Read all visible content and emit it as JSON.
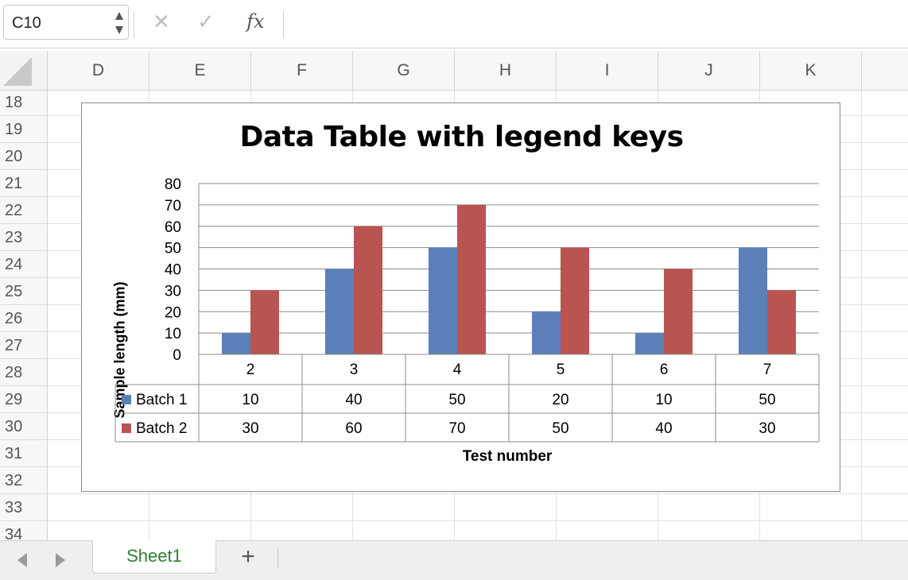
{
  "formula_bar": {
    "name_box": "C10",
    "cancel_icon": "✕",
    "enter_icon": "✓",
    "fx_label": "fx",
    "formula": ""
  },
  "columns": [
    "D",
    "E",
    "F",
    "G",
    "H",
    "I",
    "J",
    "K"
  ],
  "rows": [
    "18",
    "19",
    "20",
    "21",
    "22",
    "23",
    "24",
    "25",
    "26",
    "27",
    "28",
    "29",
    "30",
    "31",
    "32",
    "33",
    "34"
  ],
  "chart": {
    "title": "Data Table with legend keys"
  },
  "chart_data": {
    "type": "bar",
    "title": "Data Table with legend keys",
    "xlabel": "Test number",
    "ylabel": "Sample length (mm)",
    "categories": [
      "2",
      "3",
      "4",
      "5",
      "6",
      "7"
    ],
    "series": [
      {
        "name": "Batch 1",
        "values": [
          10,
          40,
          50,
          20,
          10,
          50
        ],
        "color": "#5b80b9"
      },
      {
        "name": "Batch 2",
        "values": [
          30,
          60,
          70,
          50,
          40,
          30
        ],
        "color": "#b85550"
      }
    ],
    "ylim": [
      0,
      80
    ],
    "yticks": [
      0,
      10,
      20,
      30,
      40,
      50,
      60,
      70,
      80
    ],
    "grid": true,
    "legend": "data table with legend keys"
  },
  "tabs": {
    "sheet_name": "Sheet1",
    "add_label": "+"
  },
  "colors": {
    "accent_green": "#2e7d32",
    "gridline": "#e1e1e1"
  }
}
